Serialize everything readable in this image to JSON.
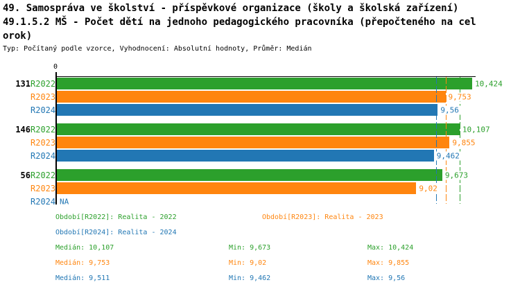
{
  "header": {
    "title_line1": "49. Samospráva ve školství - příspěvkové organizace (školy a školská zařízení)",
    "title_line2": "49.1.5.2 MŠ - Počet dětí na jednoho pedagogického pracovníka (přepočteného na cel",
    "title_line3": "orok)",
    "meta": "Typ: Počítaný podle vzorce, Vyhodnocení: Absolutní hodnoty, Průměr: Medián"
  },
  "chart_data": {
    "type": "bar",
    "orientation": "horizontal",
    "x_axis": {
      "tick_zero": "0",
      "xlim": [
        0,
        10.51
      ],
      "axis_position": "top"
    },
    "average_method": "Medián",
    "series": [
      {
        "id": "R2022",
        "color": "#2ca02c",
        "legend": "Období[R2022]: Realita - 2022",
        "median": 10.107,
        "stats": {
          "median": "Medián: 10,107",
          "min": "Min: 9,673",
          "max": "Max: 10,424"
        }
      },
      {
        "id": "R2023",
        "color": "#ff850e",
        "legend": "Období[R2023]: Realita - 2023",
        "median": 9.753,
        "stats": {
          "median": "Medián: 9,753",
          "min": "Min: 9,02",
          "max": "Max: 9,855"
        }
      },
      {
        "id": "R2024",
        "color": "#2277b4",
        "legend": "Období[R2024]: Realita - 2024",
        "median": 9.511,
        "stats": {
          "median": "Medián: 9,511",
          "min": "Min: 9,462",
          "max": "Max: 9,56"
        }
      }
    ],
    "groups": [
      {
        "label": "131",
        "bars": [
          {
            "series": "R2022",
            "value": 10.424,
            "display": "10,424"
          },
          {
            "series": "R2023",
            "value": 9.753,
            "display": "9,753"
          },
          {
            "series": "R2024",
            "value": 9.56,
            "display": "9,56"
          }
        ]
      },
      {
        "label": "146",
        "bars": [
          {
            "series": "R2022",
            "value": 10.107,
            "display": "10,107"
          },
          {
            "series": "R2023",
            "value": 9.855,
            "display": "9,855"
          },
          {
            "series": "R2024",
            "value": 9.462,
            "display": "9,462"
          }
        ]
      },
      {
        "label": "56",
        "bars": [
          {
            "series": "R2022",
            "value": 9.673,
            "display": "9,673"
          },
          {
            "series": "R2023",
            "value": 9.02,
            "display": "9,02"
          },
          {
            "series": "R2024",
            "value": null,
            "display": "NA"
          }
        ]
      }
    ]
  }
}
